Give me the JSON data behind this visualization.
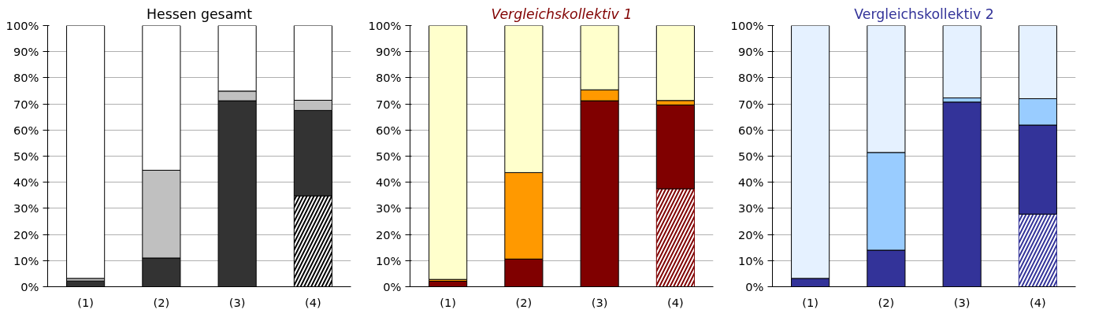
{
  "chart_data": [
    {
      "type": "bar",
      "title": "Hessen gesamt",
      "stacked": true,
      "categories": [
        "(1)",
        "(2)",
        "(3)",
        "(4)"
      ],
      "ylim": [
        0,
        100
      ],
      "yticks": [
        {
          "value": 0,
          "label": "0%"
        },
        {
          "value": 10,
          "label": "10%"
        },
        {
          "value": 20,
          "label": "20%"
        },
        {
          "value": 30,
          "label": "30%"
        },
        {
          "value": 40,
          "label": "40%"
        },
        {
          "value": 50,
          "label": "50%"
        },
        {
          "value": 60,
          "label": "60%"
        },
        {
          "value": 70,
          "label": "70%"
        },
        {
          "value": 80,
          "label": "80%"
        },
        {
          "value": 90,
          "label": "90%"
        },
        {
          "value": 100,
          "label": "100%"
        }
      ],
      "grid": "y",
      "series": [
        {
          "color": "#000000",
          "values": [
            null,
            null,
            null,
            34.8
          ]
        },
        {
          "color": "#333333",
          "values": [
            2.2,
            11.0,
            71.2,
            32.7
          ]
        },
        {
          "color": "#c0c0c0",
          "values": [
            1.0,
            33.6,
            3.7,
            3.9
          ]
        },
        {
          "color": "#ffffff",
          "values": [
            96.8,
            55.4,
            25.1,
            28.6
          ]
        }
      ]
    },
    {
      "type": "bar",
      "title": "Vergleichskollektiv 1",
      "stacked": true,
      "categories": [
        "(1)",
        "(2)",
        "(3)",
        "(4)"
      ],
      "ylim": [
        0,
        100
      ],
      "yticks": [
        {
          "value": 0,
          "label": "0%"
        },
        {
          "value": 10,
          "label": "10%"
        },
        {
          "value": 20,
          "label": "20%"
        },
        {
          "value": 30,
          "label": "30%"
        },
        {
          "value": 40,
          "label": "40%"
        },
        {
          "value": 50,
          "label": "50%"
        },
        {
          "value": 60,
          "label": "60%"
        },
        {
          "value": 70,
          "label": "70%"
        },
        {
          "value": 80,
          "label": "80%"
        },
        {
          "value": 90,
          "label": "90%"
        },
        {
          "value": 100,
          "label": "100%"
        }
      ],
      "grid": "y",
      "series": [
        {
          "color": "#800000",
          "values": [
            null,
            null,
            null,
            37.5
          ]
        },
        {
          "color": "#800000",
          "values": [
            2.1,
            10.6,
            71.2,
            32.1
          ]
        },
        {
          "color": "#ff9900",
          "values": [
            0.7,
            33.1,
            4.2,
            1.7
          ]
        },
        {
          "color": "#ffffcc",
          "values": [
            97.2,
            56.3,
            24.6,
            28.7
          ]
        }
      ]
    },
    {
      "type": "bar",
      "title": "Vergleichskollektiv 2",
      "stacked": true,
      "categories": [
        "(1)",
        "(2)",
        "(3)",
        "(4)"
      ],
      "ylim": [
        0,
        100
      ],
      "yticks": [
        {
          "value": 0,
          "label": "0%"
        },
        {
          "value": 10,
          "label": "10%"
        },
        {
          "value": 20,
          "label": "20%"
        },
        {
          "value": 30,
          "label": "30%"
        },
        {
          "value": 40,
          "label": "40%"
        },
        {
          "value": 50,
          "label": "50%"
        },
        {
          "value": 60,
          "label": "60%"
        },
        {
          "value": 70,
          "label": "70%"
        },
        {
          "value": 80,
          "label": "80%"
        },
        {
          "value": 90,
          "label": "90%"
        },
        {
          "value": 100,
          "label": "100%"
        }
      ],
      "grid": "y",
      "series": [
        {
          "color": "#333399",
          "values": [
            null,
            null,
            null,
            27.8
          ]
        },
        {
          "color": "#333399",
          "values": [
            3.2,
            14.0,
            70.7,
            34.1
          ]
        },
        {
          "color": "#99ccff",
          "values": [
            null,
            37.4,
            1.6,
            10.1
          ]
        },
        {
          "color": "#e5f1ff",
          "values": [
            96.8,
            48.6,
            27.7,
            28.0
          ]
        }
      ]
    }
  ]
}
